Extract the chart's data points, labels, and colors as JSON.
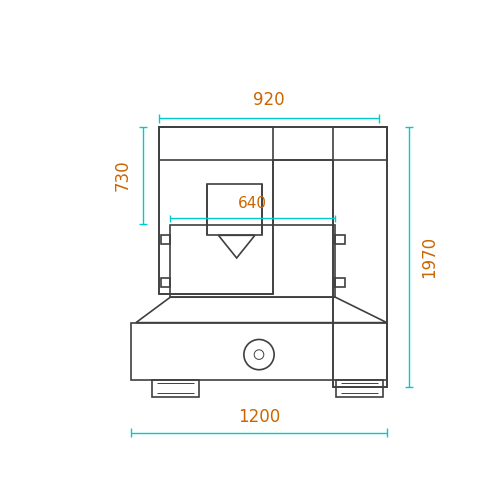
{
  "bg_color": "#ffffff",
  "line_color": "#404040",
  "dim_color": "#00cccc",
  "dim_text_color": "#cc6600",
  "dim_lw": 1.0,
  "machine_lw": 1.2,
  "dim_920_label": "920",
  "dim_730_label": "730",
  "dim_640_label": "640",
  "dim_1970_label": "1970",
  "dim_1200_label": "1200",
  "fig_width": 5.0,
  "fig_height": 5.0,
  "dpi": 100,
  "xlim": [
    -180,
    520
  ],
  "ylim": [
    -100,
    580
  ]
}
